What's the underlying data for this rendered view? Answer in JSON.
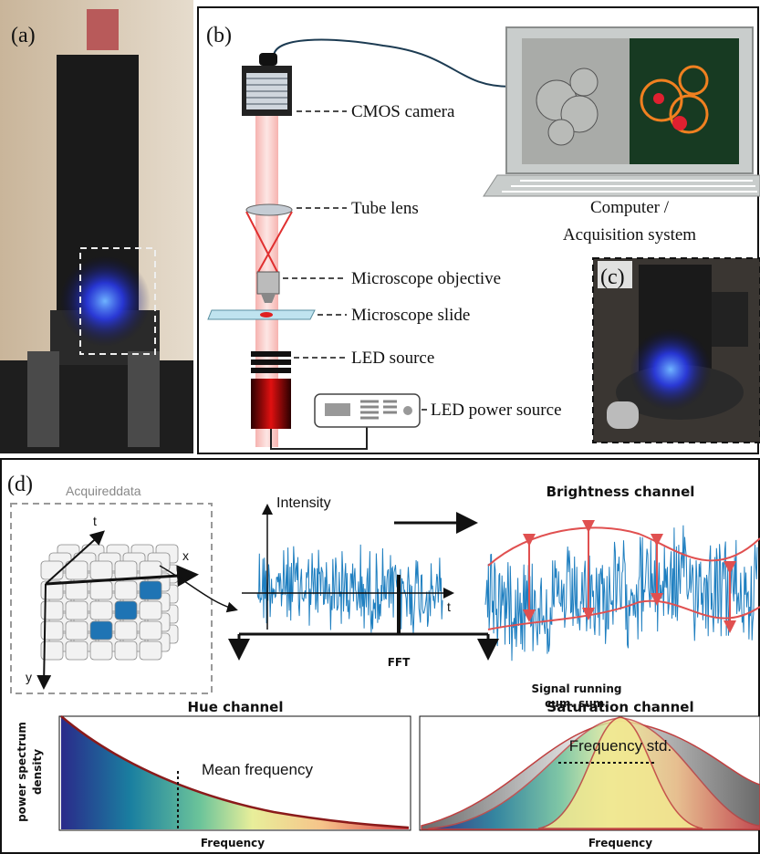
{
  "panels": {
    "a": {
      "label": "(a)"
    },
    "b": {
      "label": "(b)",
      "components": [
        "CMOS camera",
        "Tube lens",
        "Microscope objective",
        "Microscope slide",
        "LED source",
        "LED power source"
      ],
      "computer": [
        "Computer /",
        "Acquisition system"
      ]
    },
    "c": {
      "label": "(c)"
    },
    "d": {
      "label": "(d)",
      "acquired_data": {
        "title": "Acquireddata",
        "axes": [
          "t",
          "x",
          "y"
        ]
      },
      "signal": {
        "y_label": "Intensity",
        "x_label": "t"
      },
      "brightness": {
        "title": "Brightness channel",
        "note": [
          "Signal running",
          "cum. sum."
        ]
      },
      "fft": "FFT",
      "hue": {
        "title": "Hue channel",
        "y_label": [
          "power spectrum",
          "density"
        ],
        "annotation": "Mean frequency",
        "x_label": "Frequency"
      },
      "saturation": {
        "title": "Saturation channel",
        "annotation": "Frequency std.",
        "x_label": "Frequency"
      }
    }
  }
}
